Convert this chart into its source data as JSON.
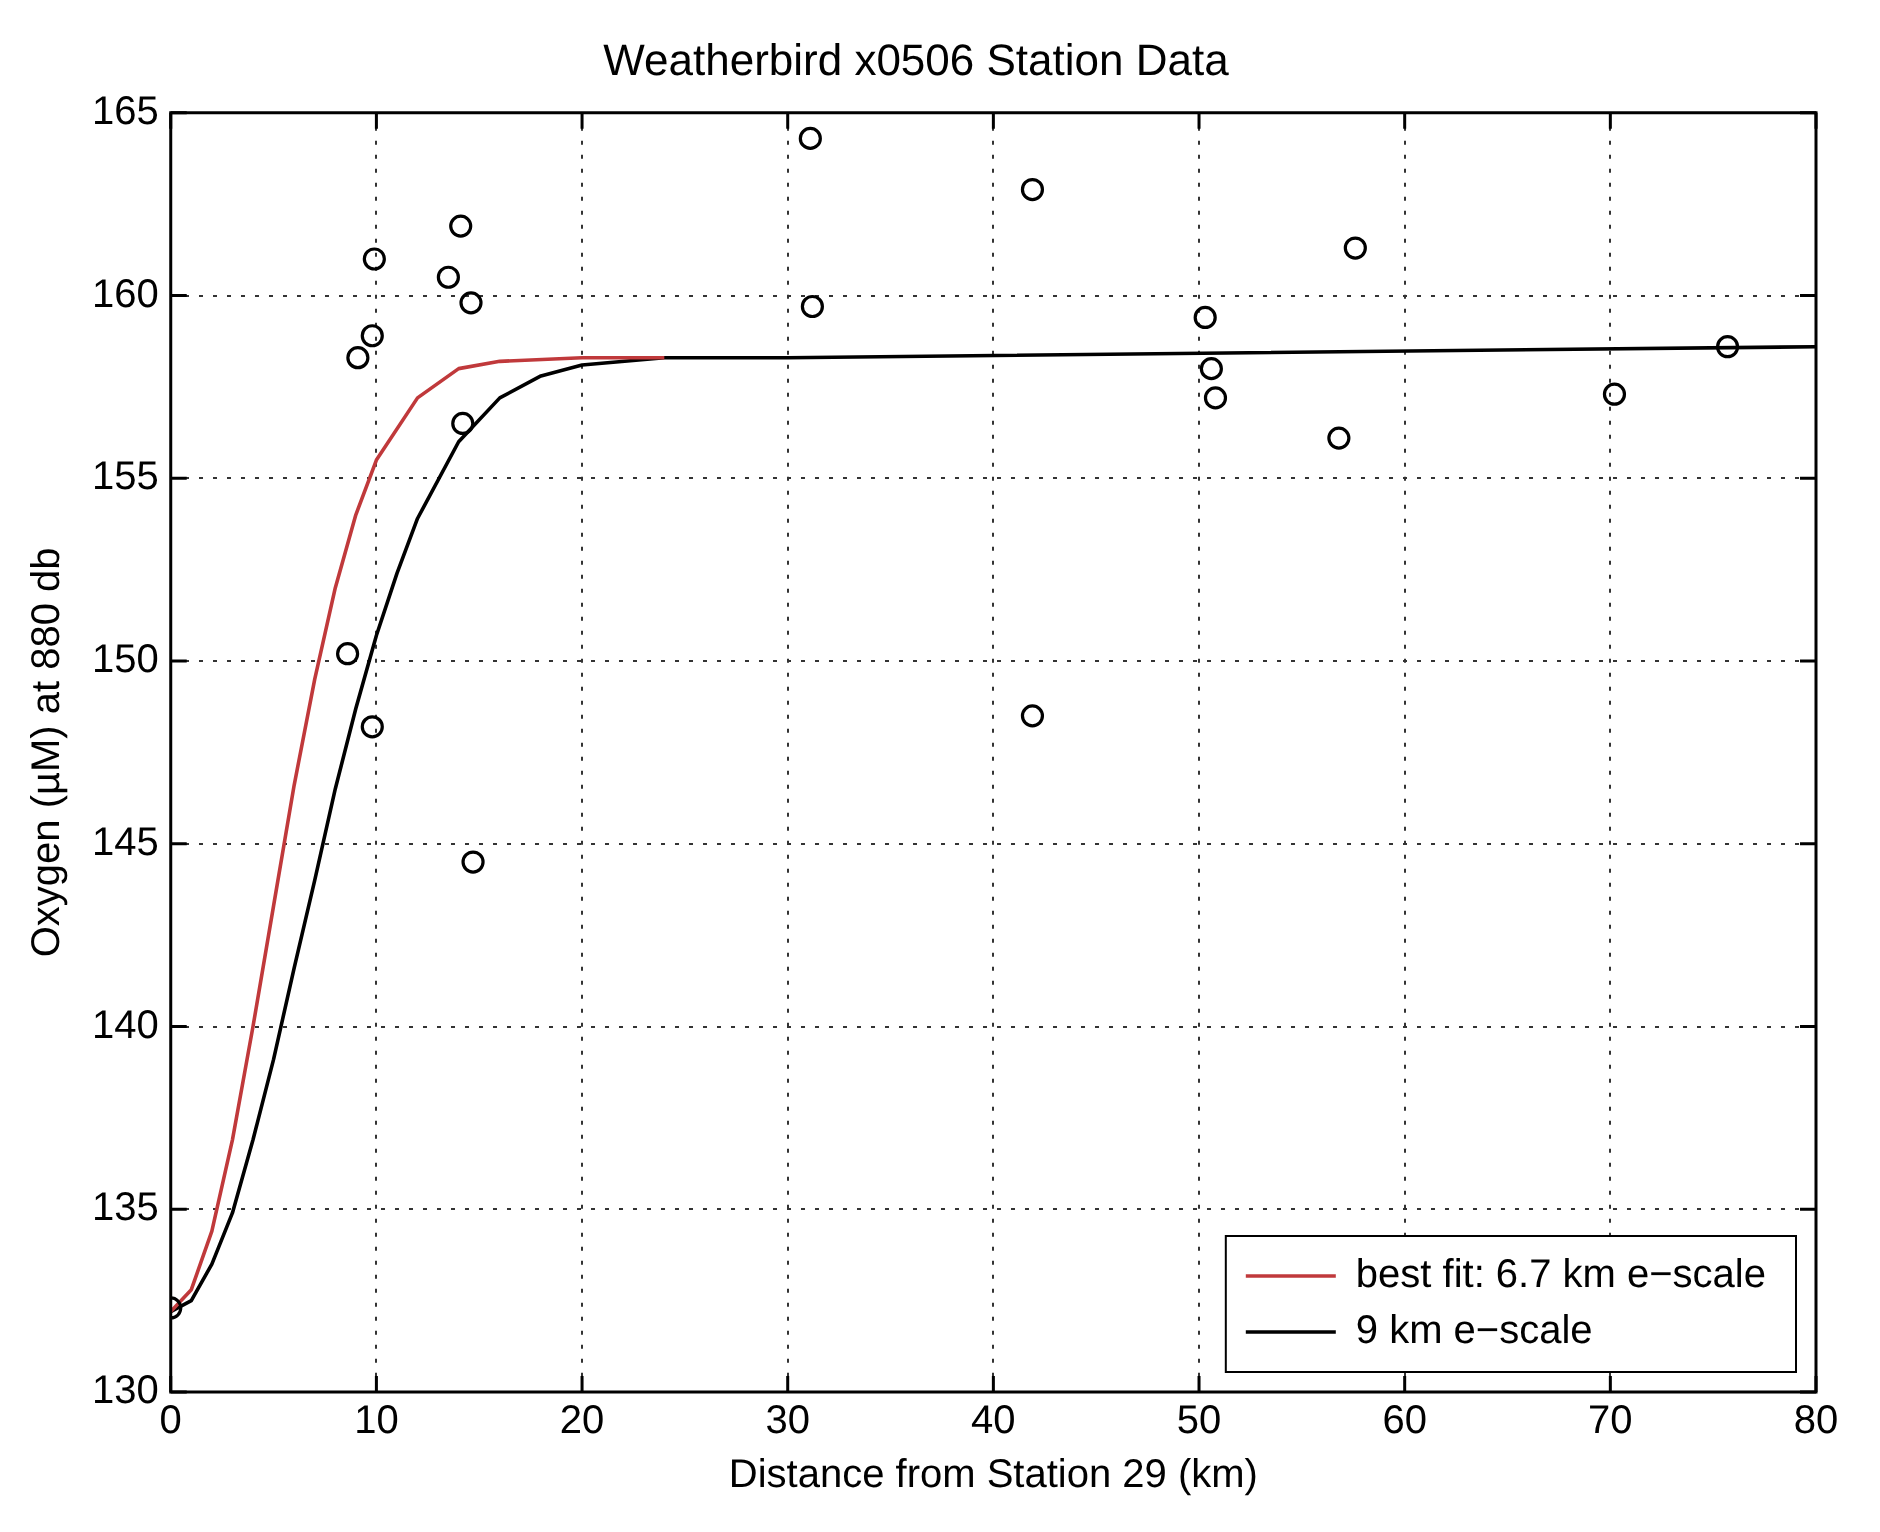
{
  "chart_data": {
    "type": "scatter",
    "title": "Weatherbird x0506 Station Data",
    "xlabel": "Distance from Station 29 (km)",
    "ylabel": "Oxygen (µM) at 880 db",
    "xlim": [
      0,
      80
    ],
    "xticks": [
      0,
      10,
      20,
      30,
      40,
      50,
      60,
      70,
      80
    ],
    "ylim": [
      130,
      165
    ],
    "yticks": [
      130,
      135,
      140,
      145,
      150,
      155,
      160,
      165
    ],
    "grid": true,
    "legend": "bottom right",
    "series": [
      {
        "type": "scatter",
        "color": "#000000",
        "marker": "circle",
        "x": [
          0,
          8.6,
          9.1,
          9.8,
          9.8,
          9.9,
          13.5,
          14.1,
          14.2,
          14.6,
          14.7,
          31.1,
          31.2,
          41.9,
          41.9,
          50.3,
          50.6,
          50.8,
          56.8,
          57.6,
          70.2,
          75.7
        ],
        "values": [
          132.3,
          150.2,
          158.3,
          148.2,
          158.9,
          161.0,
          160.5,
          161.9,
          156.5,
          159.8,
          144.5,
          164.3,
          159.7,
          162.9,
          148.5,
          159.4,
          158.0,
          157.2,
          156.1,
          161.3,
          157.3,
          158.6
        ]
      },
      {
        "type": "line",
        "name": "best fit: 6.7 km e−scale",
        "color": "#c0393b",
        "marker": "none",
        "x": [
          0,
          1,
          2,
          3,
          4,
          5,
          6,
          7,
          8,
          9,
          10,
          12,
          14,
          16,
          20,
          24
        ],
        "values": [
          132.2,
          132.8,
          134.4,
          136.9,
          140.0,
          143.3,
          146.6,
          149.5,
          152.0,
          154.0,
          155.5,
          157.2,
          158.0,
          158.2,
          158.3,
          158.3
        ]
      },
      {
        "type": "line",
        "name": "9 km e−scale",
        "color": "#000000",
        "marker": "none",
        "x": [
          0,
          1,
          2,
          3,
          4,
          5,
          6,
          7,
          8,
          9,
          10,
          11,
          12,
          14,
          16,
          18,
          20,
          24,
          30,
          80
        ],
        "values": [
          132.2,
          132.5,
          133.5,
          134.9,
          136.9,
          139.1,
          141.6,
          144.0,
          146.5,
          148.7,
          150.7,
          152.4,
          153.9,
          156.0,
          157.2,
          157.8,
          158.1,
          158.3,
          158.3,
          158.6
        ]
      }
    ]
  }
}
